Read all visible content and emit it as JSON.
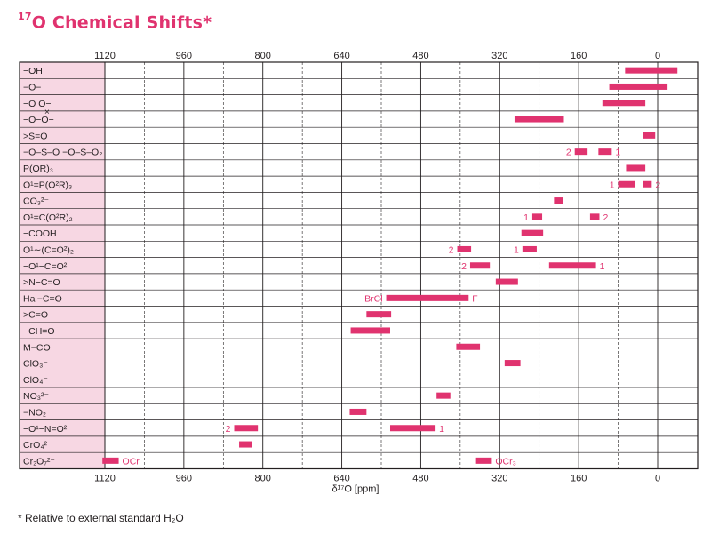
{
  "header": {
    "title_sup": "17",
    "title_text": "O Chemical Shifts*"
  },
  "footnote": "* Relative to external standard H₂O",
  "chart_data": {
    "type": "bar",
    "orientation": "horizontal-range",
    "x_reversed": true,
    "xlim": [
      1180,
      -60
    ],
    "xlabel": "δ¹⁷O [ppm]",
    "xticks": [
      1120,
      960,
      800,
      640,
      480,
      320,
      160,
      0
    ],
    "grid": true,
    "highlight_region": {
      "from": 1180,
      "to": 1120,
      "color": "#f7d7e3"
    },
    "bar_color": "#e0336f",
    "label_color": "#e0336f",
    "rows": [
      {
        "label": "−OH",
        "bars": [
          {
            "from": 66,
            "to": -40
          }
        ]
      },
      {
        "label": "−O−",
        "bars": [
          {
            "from": 98,
            "to": -20
          }
        ]
      },
      {
        "label": "−O  O−",
        "sublabel": "×",
        "bars": [
          {
            "from": 112,
            "to": 25
          }
        ]
      },
      {
        "label": "−O−O−",
        "bars": [
          {
            "from": 290,
            "to": 190
          }
        ]
      },
      {
        "label": ">S=O",
        "bars": [
          {
            "from": 30,
            "to": 5
          }
        ]
      },
      {
        "label": "−O–S–O  −O–S–O₂",
        "bars": [
          {
            "from": 168,
            "to": 142,
            "note": "2",
            "note_side": "left"
          },
          {
            "from": 120,
            "to": 93,
            "note": "1",
            "note_side": "right"
          }
        ]
      },
      {
        "label": "P(OR)₃",
        "bars": [
          {
            "from": 64,
            "to": 25
          }
        ]
      },
      {
        "label": "O¹=P(O²R)₃",
        "bars": [
          {
            "from": 80,
            "to": 45,
            "note": "1",
            "note_side": "left"
          },
          {
            "from": 30,
            "to": 12,
            "note": "2",
            "note_side": "right"
          }
        ]
      },
      {
        "label": "CO₃²⁻",
        "bars": [
          {
            "from": 210,
            "to": 192
          }
        ]
      },
      {
        "label": "O¹=C(O²R)₂",
        "bars": [
          {
            "from": 254,
            "to": 234,
            "note": "1",
            "note_side": "left"
          },
          {
            "from": 137,
            "to": 118,
            "note": "2",
            "note_side": "right"
          }
        ]
      },
      {
        "label": "−COOH",
        "bars": [
          {
            "from": 276,
            "to": 232
          }
        ]
      },
      {
        "label": "O¹∼(C=O²)₂",
        "bars": [
          {
            "from": 406,
            "to": 378,
            "note": "2",
            "note_side": "left"
          },
          {
            "from": 274,
            "to": 245,
            "note": "1",
            "note_side": "left"
          }
        ]
      },
      {
        "label": "−O¹−C=O²",
        "bars": [
          {
            "from": 380,
            "to": 340,
            "note": "2",
            "note_side": "left"
          },
          {
            "from": 220,
            "to": 125,
            "note": "1",
            "note_side": "right"
          }
        ]
      },
      {
        "label": ">N−C=O",
        "bars": [
          {
            "from": 328,
            "to": 283
          }
        ]
      },
      {
        "label": "Hal−C=O",
        "bars": [
          {
            "from": 550,
            "to": 383,
            "note": "BrCl",
            "note_side": "left",
            "note2": "F"
          }
        ]
      },
      {
        "label": ">C=O",
        "bars": [
          {
            "from": 590,
            "to": 540
          }
        ]
      },
      {
        "label": "−CH=O",
        "bars": [
          {
            "from": 622,
            "to": 542
          }
        ]
      },
      {
        "label": "M−CO",
        "bars": [
          {
            "from": 408,
            "to": 360
          }
        ]
      },
      {
        "label": "ClO₃⁻",
        "bars": [
          {
            "from": 310,
            "to": 278
          }
        ]
      },
      {
        "label": "ClO₄⁻",
        "bars": []
      },
      {
        "label": "NO₃²⁻",
        "bars": [
          {
            "from": 448,
            "to": 420
          }
        ]
      },
      {
        "label": "−NO₂",
        "bars": [
          {
            "from": 624,
            "to": 590
          }
        ]
      },
      {
        "label": "−O¹−N=O²",
        "bars": [
          {
            "from": 858,
            "to": 810,
            "note": "2",
            "note_side": "left"
          },
          {
            "from": 542,
            "to": 450,
            "note": "1",
            "note_side": "right"
          }
        ]
      },
      {
        "label": "CrO₄²⁻",
        "bars": [
          {
            "from": 848,
            "to": 822
          }
        ]
      },
      {
        "label": "Cr₂O₇²⁻",
        "bars": [
          {
            "from": 1125,
            "to": 1092,
            "note": "OCr",
            "note_side": "right"
          },
          {
            "from": 368,
            "to": 336,
            "note": "OCr₃",
            "note_side": "right"
          }
        ]
      }
    ]
  }
}
